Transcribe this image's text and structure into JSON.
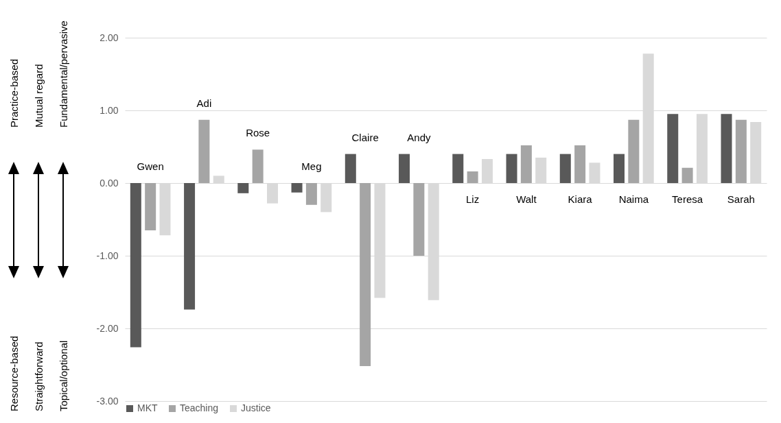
{
  "chart_data": {
    "type": "bar",
    "categories": [
      "Gwen",
      "Adi",
      "Rose",
      "Meg",
      "Claire",
      "Andy",
      "Liz",
      "Walt",
      "Kiara",
      "Naima",
      "Teresa",
      "Sarah"
    ],
    "series": [
      {
        "name": "MKT",
        "color": "#595959",
        "values": [
          -2.26,
          -1.74,
          -0.14,
          -0.13,
          0.4,
          0.4,
          0.4,
          0.4,
          0.4,
          0.4,
          0.95,
          0.95
        ]
      },
      {
        "name": "Teaching",
        "color": "#a5a5a5",
        "values": [
          -0.65,
          0.87,
          0.46,
          -0.3,
          -2.52,
          -1.0,
          0.16,
          0.52,
          0.52,
          0.87,
          0.21,
          0.87
        ]
      },
      {
        "name": "Justice",
        "color": "#d9d9d9",
        "values": [
          -0.72,
          0.1,
          -0.28,
          -0.4,
          -1.58,
          -1.61,
          0.33,
          0.35,
          0.28,
          1.78,
          0.95,
          0.84
        ]
      }
    ],
    "ylim": [
      -3,
      2
    ],
    "yticks": [
      {
        "value": -3,
        "label": "-3.00"
      },
      {
        "value": -2,
        "label": "-2.00"
      },
      {
        "value": -1,
        "label": "-1.00"
      },
      {
        "value": 0,
        "label": "0.00"
      },
      {
        "value": 1,
        "label": "1.00"
      },
      {
        "value": 2,
        "label": "2.00"
      }
    ],
    "grid": "y",
    "legend": "bottom",
    "annotations": [
      "Practice-based",
      "Mutual regard",
      "Fundamental/pervasive",
      "Resource-based",
      "Straightforward",
      "Topical/optional"
    ]
  }
}
